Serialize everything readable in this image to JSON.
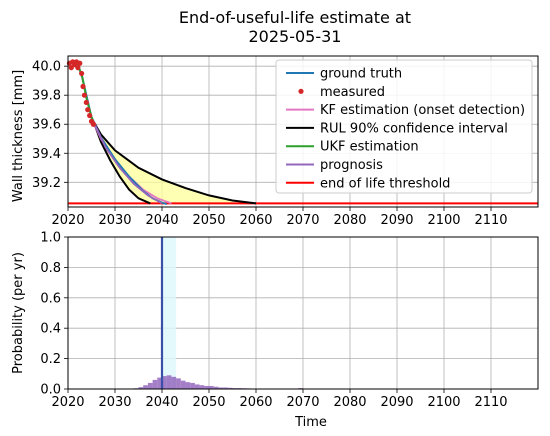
{
  "chart_data": [
    {
      "type": "line",
      "title_lines": [
        "End-of-useful-life estimate at",
        "2025-05-31"
      ],
      "xlabel": "",
      "ylabel": "Wall thickness [mm]",
      "xlim": [
        2020,
        2120
      ],
      "ylim": [
        39.03,
        40.07
      ],
      "xticks": [
        2020,
        2030,
        2040,
        2050,
        2060,
        2070,
        2080,
        2090,
        2100,
        2110
      ],
      "yticks": [
        39.2,
        39.4,
        39.6,
        39.8,
        40.0
      ],
      "ytick_labels": [
        "39.2",
        "39.4",
        "39.6",
        "39.8",
        "40.0"
      ],
      "grid": true,
      "legend_position": "top-right",
      "legend": [
        {
          "label": "ground truth",
          "color": "#1f77b4",
          "kind": "line"
        },
        {
          "label": "measured",
          "color": "#d62728",
          "kind": "dot"
        },
        {
          "label": "KF estimation (onset detection)",
          "color": "#e377c2",
          "kind": "line"
        },
        {
          "label": "RUL 90% confidence interval",
          "color": "#000000",
          "kind": "line"
        },
        {
          "label": "UKF estimation",
          "color": "#2ca02c",
          "kind": "line"
        },
        {
          "label": "prognosis",
          "color": "#9467bd",
          "kind": "line"
        },
        {
          "label": "end of life threshold",
          "color": "#ff0000",
          "kind": "line"
        }
      ],
      "threshold": 39.055,
      "measured": {
        "x": [
          2020.3,
          2020.7,
          2021.0,
          2021.4,
          2021.8,
          2022.1,
          2022.5,
          2022.9,
          2023.2,
          2023.5,
          2023.9,
          2024.2,
          2024.6,
          2025.0,
          2025.4
        ],
        "y": [
          40.02,
          39.99,
          40.03,
          40.01,
          40.03,
          39.99,
          40.02,
          39.95,
          39.86,
          39.8,
          39.75,
          39.7,
          39.66,
          39.62,
          39.6
        ]
      },
      "ground_truth": {
        "x": [
          2020.0,
          2022.0,
          2023.0,
          2025.0,
          2027.0,
          2030.0,
          2033.0,
          2036.0,
          2038.0,
          2040.0,
          2041.0
        ],
        "y": [
          40.02,
          40.02,
          39.93,
          39.65,
          39.51,
          39.36,
          39.24,
          39.14,
          39.09,
          39.06,
          39.05
        ]
      },
      "kf_estimation": {
        "x": [
          2022.0,
          2023.0,
          2025.0,
          2027.0,
          2030.0,
          2033.0,
          2036.0,
          2039.0,
          2042.0
        ],
        "y": [
          40.02,
          39.92,
          39.64,
          39.5,
          39.35,
          39.24,
          39.15,
          39.09,
          39.055
        ]
      },
      "ukf_estimation": {
        "x": [
          2022.0,
          2023.0,
          2024.0,
          2025.0,
          2025.4
        ],
        "y": [
          40.02,
          39.93,
          39.77,
          39.65,
          39.62
        ]
      },
      "prognosis": {
        "x": [
          2025.4,
          2028.0,
          2031.0,
          2034.0,
          2037.0,
          2040.0
        ],
        "y": [
          39.62,
          39.44,
          39.3,
          39.19,
          39.11,
          39.055
        ]
      },
      "ci_upper": {
        "x": [
          2025.4,
          2027.0,
          2030.0,
          2035.0,
          2040.0,
          2045.0,
          2050.0,
          2055.0,
          2060.0
        ],
        "y": [
          39.62,
          39.53,
          39.42,
          39.3,
          39.22,
          39.16,
          39.11,
          39.075,
          39.055
        ]
      },
      "ci_lower": {
        "x": [
          2025.4,
          2027.0,
          2029.0,
          2031.0,
          2033.0,
          2035.0,
          2037.5
        ],
        "y": [
          39.62,
          39.48,
          39.35,
          39.24,
          39.15,
          39.09,
          39.055
        ]
      }
    },
    {
      "type": "bar",
      "xlabel": "Time",
      "ylabel": "Probability (per yr)",
      "xlim": [
        2020,
        2120
      ],
      "ylim": [
        0.0,
        1.0
      ],
      "xticks": [
        2020,
        2030,
        2040,
        2050,
        2060,
        2070,
        2080,
        2090,
        2100,
        2110
      ],
      "yticks": [
        0.0,
        0.2,
        0.4,
        0.6,
        0.8,
        1.0
      ],
      "ytick_labels": [
        "0.0",
        "0.2",
        "0.4",
        "0.6",
        "0.8",
        "1.0"
      ],
      "grid": true,
      "bar_color": "#9467bd",
      "bins": [
        2034,
        2035,
        2036,
        2037,
        2038,
        2039,
        2040,
        2041,
        2042,
        2043,
        2044,
        2045,
        2046,
        2047,
        2048,
        2049,
        2050,
        2051,
        2052,
        2053,
        2054,
        2055,
        2056,
        2057,
        2058,
        2069
      ],
      "values": [
        0.005,
        0.012,
        0.025,
        0.04,
        0.06,
        0.075,
        0.085,
        0.09,
        0.08,
        0.07,
        0.055,
        0.045,
        0.04,
        0.03,
        0.025,
        0.02,
        0.02,
        0.015,
        0.01,
        0.01,
        0.008,
        0.006,
        0.006,
        0.005,
        0.004,
        0.006
      ],
      "vertical_line": {
        "x": 2040.0,
        "color": "#3a4fa8"
      },
      "shaded_band": {
        "x0": 2040.0,
        "x1": 2043.0,
        "color": "#ddf7fb"
      }
    }
  ]
}
